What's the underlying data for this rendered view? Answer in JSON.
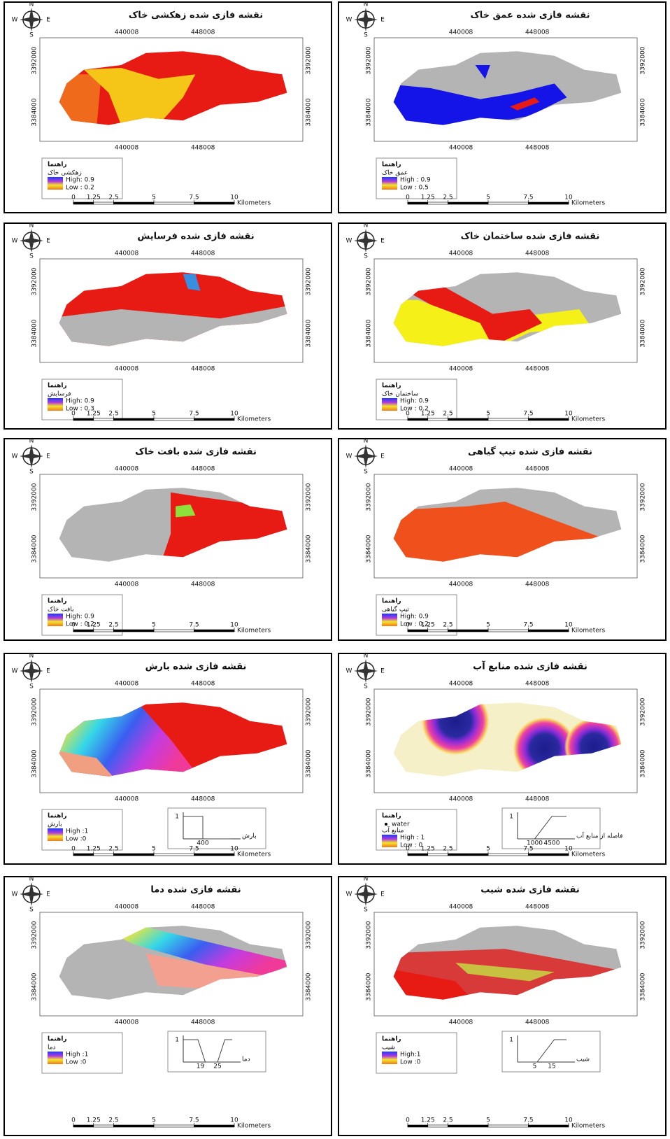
{
  "map_common": {
    "x_ticks": [
      "440008",
      "448008"
    ],
    "y_ticks": [
      "3392000",
      "3384000"
    ],
    "compass": {
      "n": "N",
      "s": "S",
      "w": "W",
      "e": "E"
    },
    "legend_title": "راهنما",
    "scale_bar": {
      "ticks": [
        0,
        1.25,
        2.5,
        5,
        7.5,
        10
      ],
      "unit": "Kilometers"
    }
  },
  "panels": [
    {
      "title": "نقشه فازی شده زهکشی خاک",
      "layer": "زهکشی خاک",
      "high": "High: 0.9",
      "low": "Low : 0.2"
    },
    {
      "title": "نقشه فازی شده عمق خاک",
      "layer": "عمق خاک",
      "high": "High : 0.9",
      "low": "Low : 0.5"
    },
    {
      "title": "نقشه فازی شده فرسایش",
      "layer": "فرسایش",
      "high": "High: 0.9",
      "low": "Low : 0.3"
    },
    {
      "title": "نقشه فازی شده ساختمان خاک",
      "layer": "ساختمان خاک",
      "high": "High: 0.9",
      "low": "Low : 0.2"
    },
    {
      "title": "نقشه فازی شده بافت خاک",
      "layer": "بافت خاک",
      "high": "High: 0.9",
      "low": "Low : 0.2"
    },
    {
      "title": "نقشه فازی شده تیپ گیاهی",
      "layer": "تیپ گیاهی",
      "high": "High: 0.9",
      "low": "Low : 0.2"
    },
    {
      "title": "نقشه فازی شده بارش",
      "layer": "بارش",
      "high": "High :1",
      "low": "Low :0",
      "graph": {
        "y_label": "1",
        "x_labels": [
          "400"
        ],
        "axis_title": "بارش"
      }
    },
    {
      "title": "نقشه فازی شده منابع آب",
      "layer": "منابع آب",
      "high": "High : 1",
      "low": "Low : 0",
      "point_label": "water",
      "graph": {
        "y_label": "1",
        "x_labels": [
          "1000",
          "4500"
        ],
        "axis_title": "فاصله از منابع آب"
      }
    },
    {
      "title": "نقشه فازی شده دما",
      "layer": "دما",
      "high": "High :1",
      "low": "Low :0",
      "graph": {
        "y_label": "1",
        "x_labels": [
          "19",
          "25"
        ],
        "axis_title": "دما"
      }
    },
    {
      "title": "نقشه فازی شده شیب",
      "layer": "شیب",
      "high": "High:1",
      "low": "Low :0",
      "graph": {
        "y_label": "1",
        "x_labels": [
          "5",
          "15"
        ],
        "axis_title": "شیب"
      }
    }
  ]
}
